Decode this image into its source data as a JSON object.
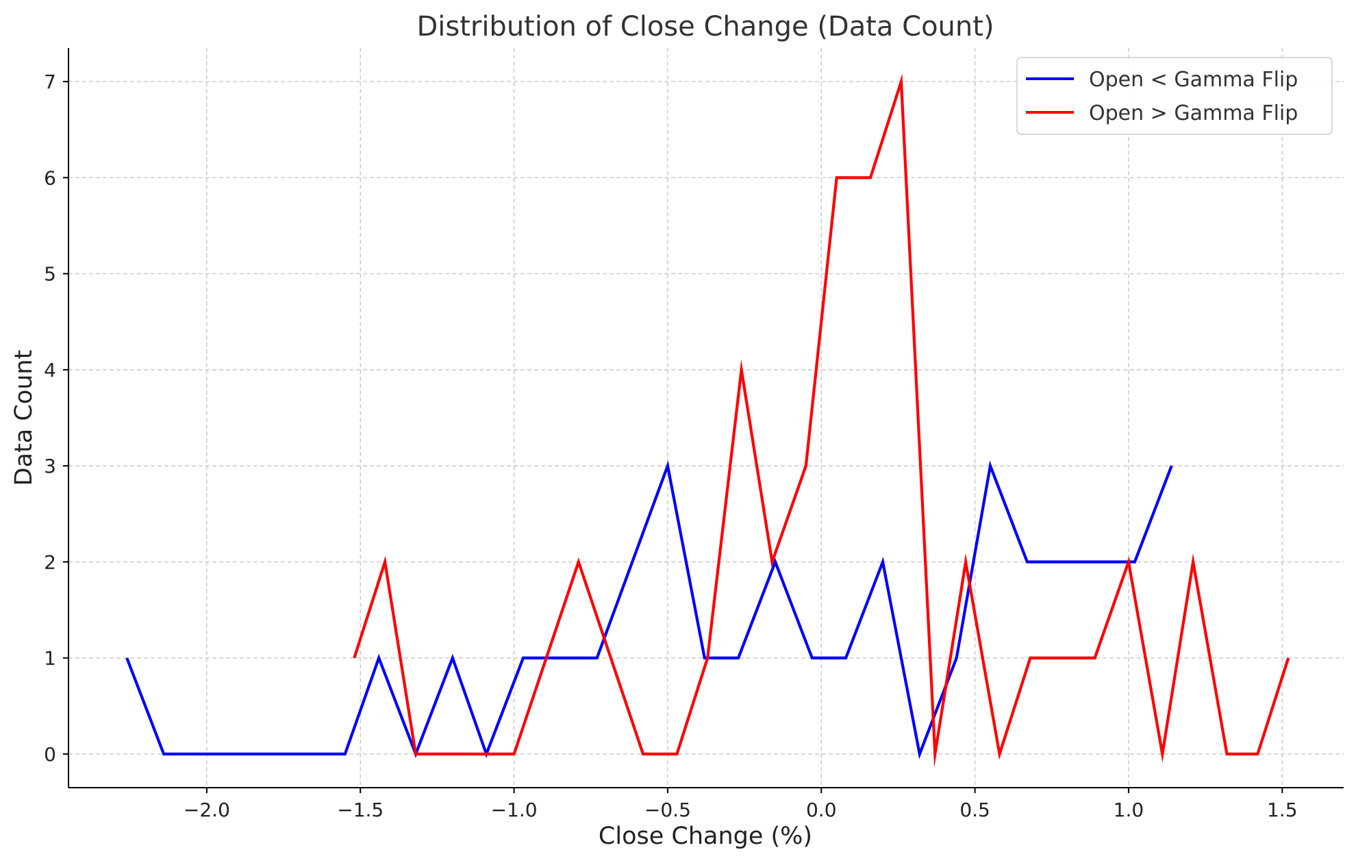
{
  "chart_data": {
    "type": "line",
    "title": "Distribution of Close Change (Data Count)",
    "xlabel": "Close Change (%)",
    "ylabel": "Data Count",
    "xlim": [
      -2.45,
      1.7
    ],
    "ylim": [
      -0.35,
      7.35
    ],
    "xticks": [
      -2.0,
      -1.5,
      -1.0,
      -0.5,
      0.0,
      0.5,
      1.0,
      1.5
    ],
    "xtick_labels": [
      "−2.0",
      "−1.5",
      "−1.0",
      "−0.5",
      "0.0",
      "0.5",
      "1.0",
      "1.5"
    ],
    "yticks": [
      0,
      1,
      2,
      3,
      4,
      5,
      6,
      7
    ],
    "ytick_labels": [
      "0",
      "1",
      "2",
      "3",
      "4",
      "5",
      "6",
      "7"
    ],
    "grid": true,
    "legend_position": "top-right",
    "series": [
      {
        "name": "Open < Gamma Flip",
        "color": "#0000ff",
        "x": [
          -2.26,
          -2.14,
          -1.55,
          -1.44,
          -1.32,
          -1.2,
          -1.09,
          -0.97,
          -0.73,
          -0.5,
          -0.38,
          -0.27,
          -0.15,
          -0.03,
          0.08,
          0.2,
          0.32,
          0.44,
          0.55,
          0.67,
          1.02,
          1.14
        ],
        "y": [
          1,
          0,
          0,
          1,
          0,
          1,
          0,
          1,
          1,
          3,
          1,
          1,
          2,
          1,
          1,
          2,
          0,
          1,
          3,
          2,
          2,
          3
        ]
      },
      {
        "name": "Open > Gamma Flip",
        "color": "#ff0000",
        "x": [
          -1.52,
          -1.42,
          -1.32,
          -1.0,
          -0.79,
          -0.58,
          -0.47,
          -0.37,
          -0.26,
          -0.16,
          -0.05,
          0.05,
          0.16,
          0.26,
          0.37,
          0.47,
          0.58,
          0.68,
          0.89,
          1.0,
          1.11,
          1.21,
          1.32,
          1.42,
          1.52
        ],
        "y": [
          1,
          2,
          0,
          0,
          2,
          0,
          0,
          1,
          4,
          2,
          3,
          6,
          6,
          7,
          0,
          2,
          0,
          1,
          1,
          2,
          0,
          2,
          0,
          0,
          1
        ]
      }
    ]
  }
}
